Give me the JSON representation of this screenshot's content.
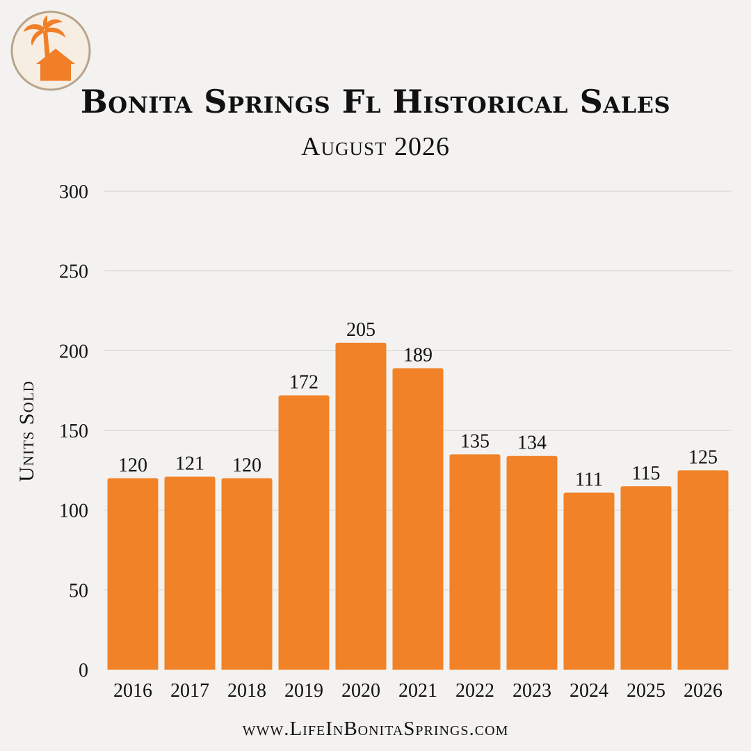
{
  "title": "Bonita Springs Fl Historical Sales",
  "subtitle": "August 2026",
  "footer": "www.LifeInBonitaSprings.com",
  "colors": {
    "bar": "#f28227",
    "background": "#f3f2f0",
    "gridline": "#cfcdca",
    "logo_ring": "#b8a58a",
    "logo_fill": "#f6ede3",
    "logo_icon": "#f07f27"
  },
  "logo": {
    "icon": "palm-tree-house-icon"
  },
  "chart_data": {
    "type": "bar",
    "categories": [
      "2016",
      "2017",
      "2018",
      "2019",
      "2020",
      "2021",
      "2022",
      "2023",
      "2024",
      "2025",
      "2026"
    ],
    "values": [
      120,
      121,
      120,
      172,
      205,
      189,
      135,
      134,
      111,
      115,
      125
    ],
    "ylabel": "Units Sold",
    "xlabel": "",
    "ylim": [
      0,
      300
    ],
    "yticks": [
      0,
      50,
      100,
      150,
      200,
      250,
      300
    ],
    "grid": true,
    "data_labels": true
  }
}
